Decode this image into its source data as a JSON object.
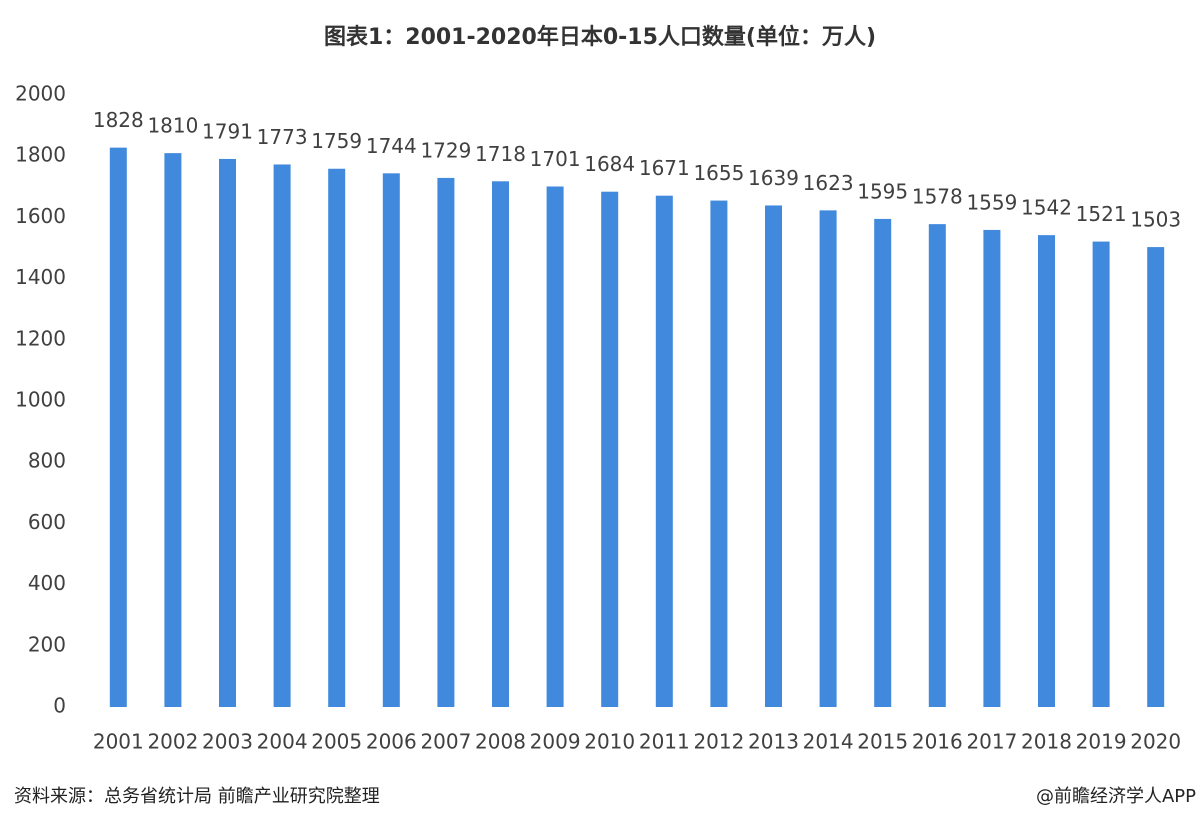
{
  "chart_data": {
    "type": "bar",
    "title": "图表1：2001-2020年日本0-15人口数量(单位：万人)",
    "categories": [
      "2001",
      "2002",
      "2003",
      "2004",
      "2005",
      "2006",
      "2007",
      "2008",
      "2009",
      "2010",
      "2011",
      "2012",
      "2013",
      "2014",
      "2015",
      "2016",
      "2017",
      "2018",
      "2019",
      "2020"
    ],
    "values": [
      1828,
      1810,
      1791,
      1773,
      1759,
      1744,
      1729,
      1718,
      1701,
      1684,
      1671,
      1655,
      1639,
      1623,
      1595,
      1578,
      1559,
      1542,
      1521,
      1503
    ],
    "color": "#4189dd",
    "ylim": [
      0,
      2000
    ],
    "yticks": [
      0,
      200,
      400,
      600,
      800,
      1000,
      1200,
      1400,
      1600,
      1800,
      2000
    ],
    "grid": false,
    "source": "资料来源：总务省统计局 前瞻产业研究院整理",
    "credit": "@前瞻经济学人APP"
  }
}
